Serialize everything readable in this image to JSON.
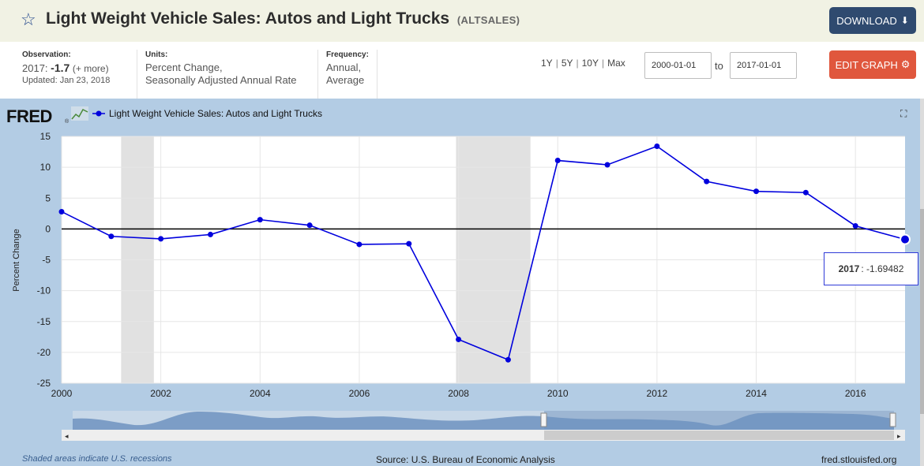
{
  "header": {
    "title": "Light Weight Vehicle Sales: Autos and Light Trucks",
    "series_id": "(ALTSALES)",
    "star_icon": "star-outline-icon",
    "download_label": "DOWNLOAD",
    "download_icon": "download-icon"
  },
  "meta": {
    "observation_label": "Observation:",
    "observation_period": "2017:",
    "observation_value": "-1.7",
    "observation_more": "(+ more)",
    "updated": "Updated: Jan 23, 2018",
    "units_label": "Units:",
    "units_line1": "Percent Change,",
    "units_line2": "Seasonally Adjusted Annual Rate",
    "frequency_label": "Frequency:",
    "frequency_line1": "Annual,",
    "frequency_line2": "Average"
  },
  "range": {
    "options": [
      "1Y",
      "5Y",
      "10Y",
      "Max"
    ],
    "from": "2000-01-01",
    "to_label": "to",
    "to": "2017-01-01"
  },
  "edit_label": "EDIT GRAPH",
  "chart": {
    "logo": "FRED",
    "logo_mark": "®",
    "legend_series": "Light Weight Vehicle Sales: Autos and Light Trucks",
    "tooltip_period": "2017",
    "tooltip_value": ": -1.69482",
    "series_color": "#0000dd",
    "recession_color": "#e1e1e1"
  },
  "chart_data": {
    "type": "line",
    "ylabel": "Percent Change",
    "xlim": [
      2000,
      2017
    ],
    "ylim": [
      -25,
      15
    ],
    "yticks": [
      15,
      10,
      5,
      0,
      -5,
      -10,
      -15,
      -20,
      -25
    ],
    "xticks": [
      2000,
      2002,
      2004,
      2006,
      2008,
      2010,
      2012,
      2014,
      2016
    ],
    "grid": true,
    "legend": "top-left",
    "recessions": [
      [
        2001.2,
        2001.86
      ],
      [
        2007.95,
        2009.45
      ]
    ],
    "series": [
      {
        "name": "Light Weight Vehicle Sales: Autos and Light Trucks",
        "x": [
          2000,
          2001,
          2002,
          2003,
          2004,
          2005,
          2006,
          2007,
          2008,
          2009,
          2010,
          2011,
          2012,
          2013,
          2014,
          2015,
          2016,
          2017
        ],
        "values": [
          2.8,
          -1.2,
          -1.6,
          -0.9,
          1.5,
          0.6,
          -2.5,
          -2.4,
          -17.9,
          -21.2,
          11.1,
          10.4,
          13.4,
          7.7,
          6.1,
          5.9,
          0.5,
          -1.69482
        ]
      }
    ]
  },
  "footer": {
    "recession_note": "Shaded areas indicate U.S. recessions",
    "source": "Source: U.S. Bureau of Economic Analysis",
    "site": "fred.stlouisfed.org"
  }
}
